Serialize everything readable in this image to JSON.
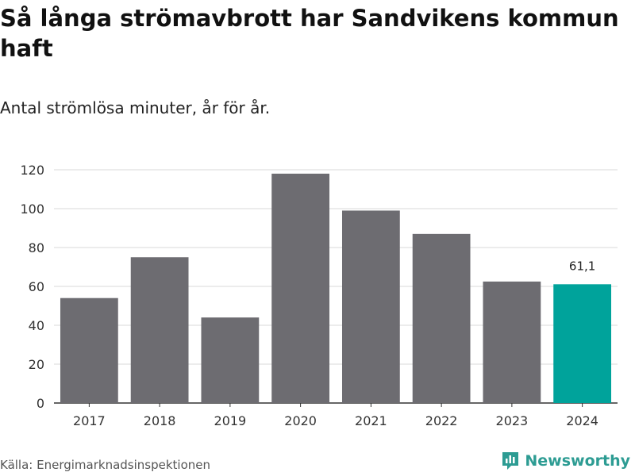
{
  "title": "Så långa strömavbrott har Sandvikens kommun haft",
  "subtitle": "Antal strömlösa minuter, år för år.",
  "source": "Källa: Energimarknadsinspektionen",
  "brand": {
    "name": "Newsworthy",
    "icon": "newsworthy-logo-icon",
    "color": "#2d9c93"
  },
  "colors": {
    "bar": "#6d6c71",
    "highlight": "#00a39b",
    "grid": "#d9d9d9",
    "axis": "#333333"
  },
  "chart_data": {
    "type": "bar",
    "title": "Så långa strömavbrott har Sandvikens kommun haft",
    "xlabel": "",
    "ylabel": "",
    "categories": [
      "2017",
      "2018",
      "2019",
      "2020",
      "2021",
      "2022",
      "2023",
      "2024"
    ],
    "values": [
      54,
      75,
      44,
      118,
      99,
      87,
      62.5,
      61.1
    ],
    "highlight_index": 7,
    "data_labels": [
      {
        "index": 7,
        "text": "61,1"
      }
    ],
    "ylim": [
      0,
      120
    ],
    "yticks": [
      "0",
      "20",
      "40",
      "60",
      "80",
      "100",
      "120"
    ],
    "grid": true
  }
}
